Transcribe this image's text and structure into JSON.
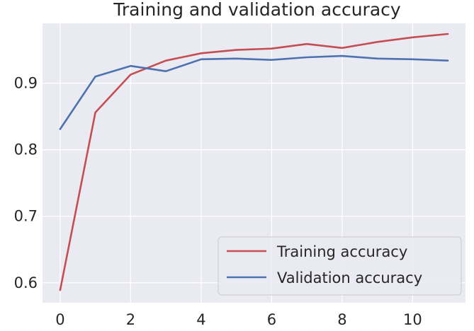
{
  "chart_data": {
    "type": "line",
    "title": "Training and validation accuracy",
    "xlabel": "",
    "ylabel": "",
    "x": [
      0,
      1,
      2,
      3,
      4,
      5,
      6,
      7,
      8,
      9,
      10,
      11
    ],
    "xticks": [
      0,
      2,
      4,
      6,
      8,
      10
    ],
    "xtick_labels": [
      "0",
      "2",
      "4",
      "6",
      "8",
      "10"
    ],
    "yticks": [
      0.6,
      0.7,
      0.8,
      0.9
    ],
    "ytick_labels": [
      "0.6",
      "0.7",
      "0.8",
      "0.9"
    ],
    "xlim": [
      -0.5,
      11.5
    ],
    "ylim": [
      0.57,
      0.99
    ],
    "grid": true,
    "legend_position": "lower-right",
    "series": [
      {
        "name": "Training accuracy",
        "color": "#c44e52",
        "values": [
          0.589,
          0.856,
          0.913,
          0.934,
          0.945,
          0.95,
          0.952,
          0.959,
          0.953,
          0.962,
          0.969,
          0.974
        ]
      },
      {
        "name": "Validation accuracy",
        "color": "#4c72b0",
        "values": [
          0.831,
          0.91,
          0.926,
          0.918,
          0.936,
          0.937,
          0.935,
          0.939,
          0.941,
          0.937,
          0.936,
          0.934
        ]
      }
    ],
    "style": {
      "plot_background": "#eaeaf2",
      "grid_color": "#ffffff"
    }
  }
}
